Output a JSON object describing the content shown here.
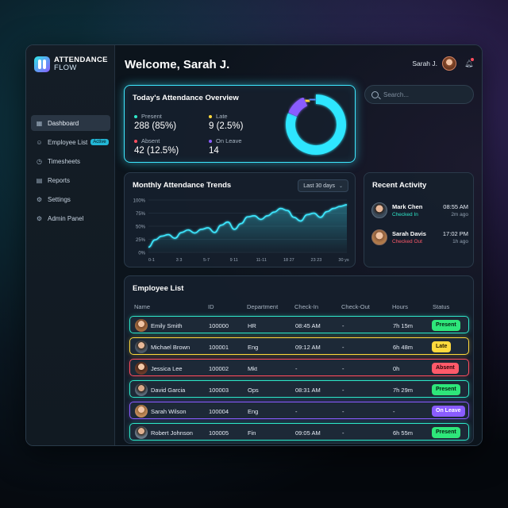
{
  "app": {
    "logo_line1": "ATTENDANCE",
    "logo_line2": "FLOW"
  },
  "sidebar": {
    "items": [
      {
        "label": "Dashboard",
        "icon": "grid-icon",
        "active": true
      },
      {
        "label": "Employee List",
        "icon": "users-icon",
        "badge": "Active"
      },
      {
        "label": "Timesheets",
        "icon": "clock-icon"
      },
      {
        "label": "Reports",
        "icon": "document-icon"
      },
      {
        "label": "Settings",
        "icon": "gear-icon"
      },
      {
        "label": "Admin Panel",
        "icon": "shield-gear-icon"
      }
    ]
  },
  "header": {
    "welcome": "Welcome, Sarah J.",
    "user_name": "Sarah J.",
    "search_placeholder": "Search..."
  },
  "overview": {
    "title": "Today's Attendance Overview",
    "stats": [
      {
        "label": "Present",
        "value": "288 (85%)",
        "color": "#2ee6c8"
      },
      {
        "label": "Late",
        "value": "9 (2.5%)",
        "color": "#ffd93d"
      },
      {
        "label": "Absent",
        "value": "42 (12.5%)",
        "color": "#ff4d5e"
      },
      {
        "label": "On Leave",
        "value": "14",
        "color": "#8a5cff"
      }
    ],
    "donut": [
      {
        "name": "Present",
        "value": 288,
        "color": "#2ee6ff"
      },
      {
        "name": "Absent",
        "value": 42,
        "color": "#8a5cff"
      },
      {
        "name": "Late",
        "value": 9,
        "color": "#ffd93d"
      },
      {
        "name": "On Leave",
        "value": 14,
        "color": "#5a8cff"
      }
    ]
  },
  "trends": {
    "title": "Monthly Attendance Trends",
    "range": "Last 30 days"
  },
  "chart_data": {
    "type": "area",
    "title": "Monthly Attendance Trends",
    "x_ticks": [
      "0-1",
      "3 3",
      "5-7",
      "9 11",
      "11-11",
      "18 27",
      "23 23",
      "30 ys"
    ],
    "y_ticks": [
      "0%",
      "25%",
      "50%",
      "75%",
      "100%"
    ],
    "ylim": [
      0,
      100
    ],
    "x": [
      0,
      1,
      2,
      3,
      4,
      5,
      6,
      7,
      8,
      9,
      10,
      11,
      12,
      13,
      14,
      15,
      16,
      17,
      18,
      19,
      20,
      21,
      22,
      23,
      24,
      25,
      26,
      27,
      28,
      29,
      30
    ],
    "values": [
      10,
      24,
      31,
      34,
      27,
      38,
      43,
      37,
      44,
      47,
      38,
      52,
      58,
      44,
      55,
      68,
      70,
      63,
      70,
      77,
      84,
      80,
      67,
      60,
      72,
      75,
      67,
      78,
      84,
      88,
      91
    ],
    "line_color": "#3ee8ff"
  },
  "activity": {
    "title": "Recent Activity",
    "items": [
      {
        "name": "Mark Chen",
        "status": "Checked In",
        "status_color": "#2ee6c8",
        "time": "08:55 AM",
        "ago": "2m ago"
      },
      {
        "name": "Sarah Davis",
        "status": "Checked Out",
        "status_color": "#ff5a6a",
        "time": "17:02 PM",
        "ago": "1h ago"
      }
    ]
  },
  "employees": {
    "title": "Employee List",
    "columns": [
      "Name",
      "ID",
      "Department",
      "Check-In",
      "Check-Out",
      "Hours",
      "Status"
    ],
    "rows": [
      {
        "name": "Emily Smith",
        "id": "100000",
        "dept": "HR",
        "in": "08:45 AM",
        "out": "-",
        "hours": "7h 15m",
        "status": "Present",
        "tone": "present"
      },
      {
        "name": "Michael Brown",
        "id": "100001",
        "dept": "Eng",
        "in": "09:12 AM",
        "out": "-",
        "hours": "6h 48m",
        "status": "Late",
        "tone": "late"
      },
      {
        "name": "Jessica Lee",
        "id": "100002",
        "dept": "Mkt",
        "in": "-",
        "out": "-",
        "hours": "0h",
        "status": "Absent",
        "tone": "absent"
      },
      {
        "name": "David Garcia",
        "id": "100003",
        "dept": "Ops",
        "in": "08:31 AM",
        "out": "-",
        "hours": "7h 29m",
        "status": "Present",
        "tone": "present"
      },
      {
        "name": "Sarah Wilson",
        "id": "100004",
        "dept": "Eng",
        "in": "-",
        "out": "-",
        "hours": "-",
        "status": "On Leave",
        "tone": "leave"
      },
      {
        "name": "Robert Johnson",
        "id": "100005",
        "dept": "Fin",
        "in": "09:05 AM",
        "out": "-",
        "hours": "6h 55m",
        "status": "Present",
        "tone": "present"
      }
    ]
  }
}
